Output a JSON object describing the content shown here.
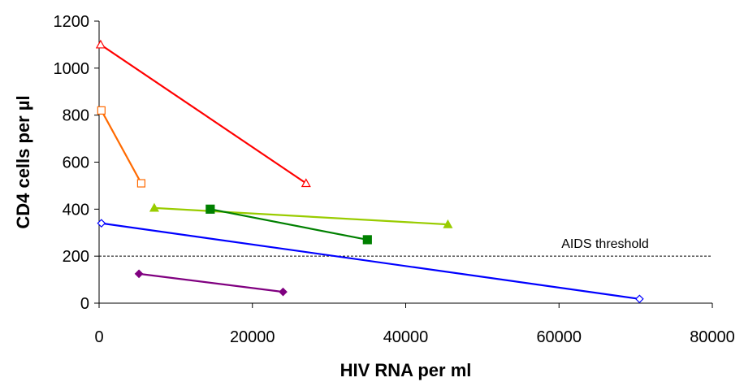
{
  "chart_data": {
    "type": "line",
    "title": "",
    "xlabel": "HIV RNA per ml",
    "ylabel": "CD4 cells per µl",
    "xlim": [
      0,
      80000
    ],
    "ylim": [
      0,
      1200
    ],
    "xticks": [
      0,
      20000,
      40000,
      60000,
      80000
    ],
    "yticks": [
      0,
      200,
      400,
      600,
      800,
      1000,
      1200
    ],
    "grid": false,
    "legend": "none",
    "threshold": {
      "y": 200,
      "label": "AIDS threshold",
      "style": "dashed"
    },
    "series": [
      {
        "color": "#ff0000",
        "marker": "triangle-open",
        "points": [
          [
            200,
            1100
          ],
          [
            27000,
            510
          ]
        ]
      },
      {
        "color": "#ff6a00",
        "marker": "square-open",
        "points": [
          [
            300,
            820
          ],
          [
            5500,
            510
          ]
        ]
      },
      {
        "color": "#99cc00",
        "marker": "triangle-filled",
        "points": [
          [
            7200,
            405
          ],
          [
            45500,
            335
          ]
        ]
      },
      {
        "color": "#008000",
        "marker": "square-filled",
        "points": [
          [
            14500,
            400
          ],
          [
            35000,
            270
          ]
        ]
      },
      {
        "color": "#0000ff",
        "marker": "diamond-open",
        "points": [
          [
            300,
            340
          ],
          [
            70500,
            18
          ]
        ]
      },
      {
        "color": "#800080",
        "marker": "diamond-filled",
        "points": [
          [
            5200,
            125
          ],
          [
            24000,
            48
          ]
        ]
      }
    ]
  }
}
